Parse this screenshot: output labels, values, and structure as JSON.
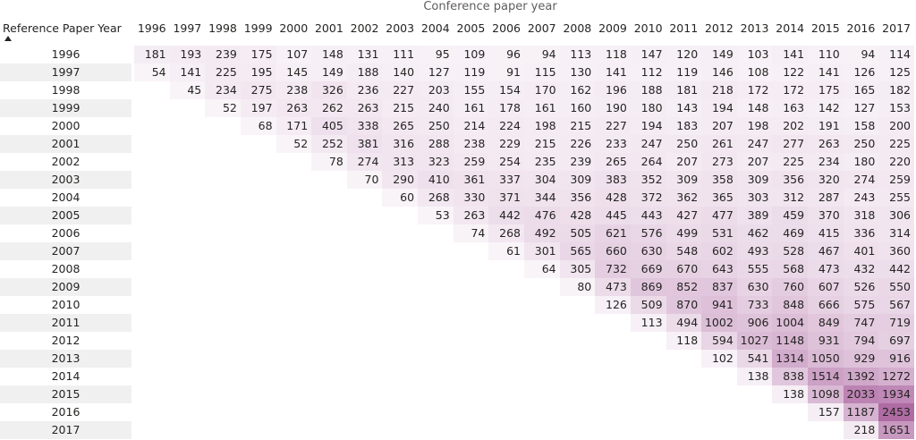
{
  "table": {
    "title": "Conference paper year",
    "corner_header": "Reference Paper Year",
    "columns": [
      1996,
      1997,
      1998,
      1999,
      2000,
      2001,
      2002,
      2003,
      2004,
      2005,
      2006,
      2007,
      2008,
      2009,
      2010,
      2011,
      2012,
      2013,
      2014,
      2015,
      2016,
      2017
    ],
    "rows": [
      {
        "label": 1996,
        "cells": [
          181,
          193,
          239,
          175,
          107,
          148,
          131,
          111,
          95,
          109,
          96,
          94,
          113,
          118,
          147,
          120,
          149,
          103,
          141,
          110,
          94,
          114
        ]
      },
      {
        "label": 1997,
        "cells": [
          54,
          141,
          225,
          195,
          145,
          149,
          188,
          140,
          127,
          119,
          91,
          115,
          130,
          141,
          112,
          119,
          146,
          108,
          122,
          141,
          126,
          125
        ]
      },
      {
        "label": 1998,
        "cells": [
          null,
          45,
          234,
          275,
          238,
          326,
          236,
          227,
          203,
          155,
          154,
          170,
          162,
          196,
          188,
          181,
          218,
          172,
          172,
          175,
          165,
          182
        ]
      },
      {
        "label": 1999,
        "cells": [
          null,
          null,
          52,
          197,
          263,
          262,
          263,
          215,
          240,
          161,
          178,
          161,
          160,
          190,
          180,
          143,
          194,
          148,
          163,
          142,
          127,
          153
        ]
      },
      {
        "label": 2000,
        "cells": [
          null,
          null,
          null,
          68,
          171,
          405,
          338,
          265,
          250,
          214,
          224,
          198,
          215,
          227,
          194,
          183,
          207,
          198,
          202,
          191,
          158,
          200
        ]
      },
      {
        "label": 2001,
        "cells": [
          null,
          null,
          null,
          null,
          52,
          252,
          381,
          316,
          288,
          238,
          229,
          215,
          226,
          233,
          247,
          250,
          261,
          247,
          277,
          263,
          250,
          225
        ]
      },
      {
        "label": 2002,
        "cells": [
          null,
          null,
          null,
          null,
          null,
          78,
          274,
          313,
          323,
          259,
          254,
          235,
          239,
          265,
          264,
          207,
          273,
          207,
          225,
          234,
          180,
          220
        ]
      },
      {
        "label": 2003,
        "cells": [
          null,
          null,
          null,
          null,
          null,
          null,
          70,
          290,
          410,
          361,
          337,
          304,
          309,
          383,
          352,
          309,
          358,
          309,
          356,
          320,
          274,
          259
        ]
      },
      {
        "label": 2004,
        "cells": [
          null,
          null,
          null,
          null,
          null,
          null,
          null,
          60,
          268,
          330,
          371,
          344,
          356,
          428,
          372,
          362,
          365,
          303,
          312,
          287,
          243,
          255
        ]
      },
      {
        "label": 2005,
        "cells": [
          null,
          null,
          null,
          null,
          null,
          null,
          null,
          null,
          53,
          263,
          442,
          476,
          428,
          445,
          443,
          427,
          477,
          389,
          459,
          370,
          318,
          306
        ]
      },
      {
        "label": 2006,
        "cells": [
          null,
          null,
          null,
          null,
          null,
          null,
          null,
          null,
          null,
          74,
          268,
          492,
          505,
          621,
          576,
          499,
          531,
          462,
          469,
          415,
          336,
          314
        ]
      },
      {
        "label": 2007,
        "cells": [
          null,
          null,
          null,
          null,
          null,
          null,
          null,
          null,
          null,
          null,
          61,
          301,
          565,
          660,
          630,
          548,
          602,
          493,
          528,
          467,
          401,
          360
        ]
      },
      {
        "label": 2008,
        "cells": [
          null,
          null,
          null,
          null,
          null,
          null,
          null,
          null,
          null,
          null,
          null,
          64,
          305,
          732,
          669,
          670,
          643,
          555,
          568,
          473,
          432,
          442
        ]
      },
      {
        "label": 2009,
        "cells": [
          null,
          null,
          null,
          null,
          null,
          null,
          null,
          null,
          null,
          null,
          null,
          null,
          80,
          473,
          869,
          852,
          837,
          630,
          760,
          607,
          526,
          550
        ]
      },
      {
        "label": 2010,
        "cells": [
          null,
          null,
          null,
          null,
          null,
          null,
          null,
          null,
          null,
          null,
          null,
          null,
          null,
          126,
          509,
          870,
          941,
          733,
          848,
          666,
          575,
          567
        ]
      },
      {
        "label": 2011,
        "cells": [
          null,
          null,
          null,
          null,
          null,
          null,
          null,
          null,
          null,
          null,
          null,
          null,
          null,
          null,
          113,
          494,
          1002,
          906,
          1004,
          849,
          747,
          719
        ]
      },
      {
        "label": 2012,
        "cells": [
          null,
          null,
          null,
          null,
          null,
          null,
          null,
          null,
          null,
          null,
          null,
          null,
          null,
          null,
          null,
          118,
          594,
          1027,
          1148,
          931,
          794,
          697
        ]
      },
      {
        "label": 2013,
        "cells": [
          null,
          null,
          null,
          null,
          null,
          null,
          null,
          null,
          null,
          null,
          null,
          null,
          null,
          null,
          null,
          null,
          102,
          541,
          1314,
          1050,
          929,
          916
        ]
      },
      {
        "label": 2014,
        "cells": [
          null,
          null,
          null,
          null,
          null,
          null,
          null,
          null,
          null,
          null,
          null,
          null,
          null,
          null,
          null,
          null,
          null,
          138,
          838,
          1514,
          1392,
          1272
        ]
      },
      {
        "label": 2015,
        "cells": [
          null,
          null,
          null,
          null,
          null,
          null,
          null,
          null,
          null,
          null,
          null,
          null,
          null,
          null,
          null,
          null,
          null,
          null,
          138,
          1098,
          2033,
          1934
        ]
      },
      {
        "label": 2016,
        "cells": [
          null,
          null,
          null,
          null,
          null,
          null,
          null,
          null,
          null,
          null,
          null,
          null,
          null,
          null,
          null,
          null,
          null,
          null,
          null,
          157,
          1187,
          2453
        ]
      },
      {
        "label": 2017,
        "cells": [
          null,
          null,
          null,
          null,
          null,
          null,
          null,
          null,
          null,
          null,
          null,
          null,
          null,
          null,
          null,
          null,
          null,
          null,
          null,
          null,
          218,
          1651
        ]
      }
    ]
  }
}
